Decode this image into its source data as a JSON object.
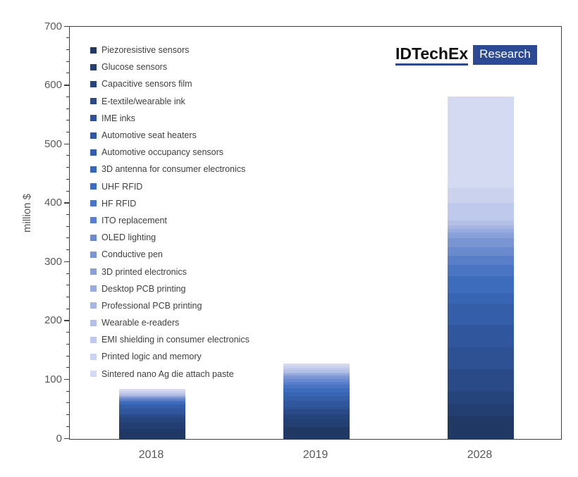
{
  "y_axis": {
    "title": "million $",
    "min": 0,
    "max": 700,
    "major_step": 100,
    "minor_step": 20,
    "tick_labels": [
      "0",
      "100",
      "200",
      "300",
      "400",
      "500",
      "600",
      "700"
    ],
    "label_color": "#595959",
    "axis_color": "#404040"
  },
  "x_axis": {
    "categories": [
      "2018",
      "2019",
      "2028"
    ],
    "label_color": "#595959"
  },
  "logo": {
    "brand": "IDTechEx",
    "suffix": "Research",
    "accent_color": "#2c4a94"
  },
  "chart_data": {
    "type": "bar",
    "stacked": true,
    "title": "",
    "xlabel": "",
    "ylabel": "million $",
    "ylim": [
      0,
      700
    ],
    "grid": false,
    "legend_position": "inside-top-left",
    "categories": [
      "2018",
      "2019",
      "2028"
    ],
    "totals_estimated": [
      85,
      128,
      581
    ],
    "series": [
      {
        "name": "Piezoresistive sensors",
        "color": "#1F3864",
        "values": [
          17,
          20,
          38
        ]
      },
      {
        "name": "Glucose sensors",
        "color": "#233E70",
        "values": [
          11,
          13,
          22
        ]
      },
      {
        "name": "Capacitive sensors film",
        "color": "#26447C",
        "values": [
          8,
          9,
          20
        ]
      },
      {
        "name": "E-textile/wearable ink",
        "color": "#2A4A87",
        "values": [
          5,
          8,
          38
        ]
      },
      {
        "name": "IME inks",
        "color": "#2D5192",
        "values": [
          2,
          4,
          38
        ]
      },
      {
        "name": "Automotive seat heaters",
        "color": "#30579D",
        "values": [
          9,
          11,
          38
        ]
      },
      {
        "name": "Automotive occupancy sensors",
        "color": "#345EA8",
        "values": [
          5,
          8,
          36
        ]
      },
      {
        "name": "3D antenna for consumer electronics",
        "color": "#3865B3",
        "values": [
          3,
          6,
          18
        ]
      },
      {
        "name": "UHF RFID",
        "color": "#3E6CBD",
        "values": [
          3,
          7,
          28
        ]
      },
      {
        "name": "HF RFID",
        "color": "#4A74C4",
        "values": [
          2,
          6,
          20
        ]
      },
      {
        "name": "ITO replacement",
        "color": "#5A7FCA",
        "values": [
          2,
          5,
          15
        ]
      },
      {
        "name": "OLED lighting",
        "color": "#6A8ACF",
        "values": [
          2,
          5,
          15
        ]
      },
      {
        "name": "Conductive pen",
        "color": "#7A95D4",
        "values": [
          1.5,
          4,
          15
        ]
      },
      {
        "name": "3D printed electronics",
        "color": "#89A0D9",
        "values": [
          1.5,
          3,
          10
        ]
      },
      {
        "name": "Desktop PCB printing",
        "color": "#98ABDE",
        "values": [
          1,
          2,
          6
        ]
      },
      {
        "name": "Professional PCB printing",
        "color": "#A6B5E2",
        "values": [
          1,
          2,
          6
        ]
      },
      {
        "name": "Wearable e-readers",
        "color": "#B3BFE7",
        "values": [
          3,
          4,
          8
        ]
      },
      {
        "name": "EMI shielding in consumer electronics",
        "color": "#BFC9EB",
        "values": [
          2,
          4,
          30
        ]
      },
      {
        "name": "Printed logic and memory",
        "color": "#CAD2EE",
        "values": [
          2,
          3,
          25
        ]
      },
      {
        "name": "Sintered nano Ag die attach paste",
        "color": "#D4DAF1",
        "values": [
          4,
          4,
          155
        ]
      }
    ]
  }
}
